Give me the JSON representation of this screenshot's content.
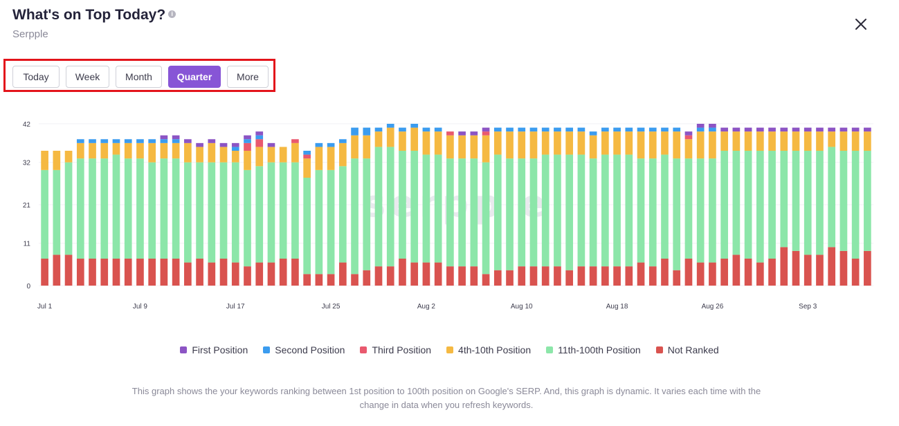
{
  "header": {
    "title": "What's on Top Today?",
    "subtitle": "Serpple",
    "info_icon": "info-circle-icon",
    "close_icon": "close-icon"
  },
  "tabs": [
    {
      "label": "Today",
      "active": false
    },
    {
      "label": "Week",
      "active": false
    },
    {
      "label": "Month",
      "active": false
    },
    {
      "label": "Quarter",
      "active": true
    },
    {
      "label": "More",
      "active": false
    }
  ],
  "colors": {
    "accent": "#8755d6",
    "highlight_border": "#e3141b"
  },
  "chart_data": {
    "type": "bar",
    "stacked": true,
    "watermark": "serpple",
    "y_ticks": [
      0,
      11,
      21,
      32,
      42
    ],
    "ylim": [
      0,
      42
    ],
    "x_tick_labels": [
      "Jul 1",
      "Jul 9",
      "Jul 17",
      "Jul 25",
      "Aug 2",
      "Aug 10",
      "Aug 18",
      "Aug 26",
      "Sep 3"
    ],
    "x_tick_indices": [
      0,
      8,
      16,
      24,
      32,
      40,
      48,
      56,
      64
    ],
    "grid": true,
    "legend_position": "bottom",
    "series": [
      {
        "name": "Not Ranked",
        "color": "#d9534f",
        "values": [
          7,
          8,
          8,
          7,
          7,
          7,
          7,
          7,
          7,
          7,
          7,
          7,
          6,
          7,
          6,
          7,
          6,
          5,
          6,
          6,
          7,
          7,
          3,
          3,
          3,
          6,
          3,
          4,
          5,
          5,
          7,
          6,
          6,
          6,
          5,
          5,
          5,
          3,
          4,
          4,
          5,
          5,
          5,
          5,
          4,
          5,
          5,
          5,
          5,
          5,
          6,
          5,
          7,
          4,
          7,
          6,
          6,
          7,
          8,
          7,
          6,
          7,
          10,
          9,
          8,
          8,
          10,
          9,
          7,
          9
        ]
      },
      {
        "name": "11th-100th Position",
        "color": "#8ce6a9",
        "values": [
          23,
          22,
          24,
          26,
          26,
          26,
          27,
          26,
          26,
          25,
          26,
          26,
          26,
          25,
          26,
          25,
          26,
          25,
          25,
          26,
          25,
          25,
          25,
          27,
          27,
          25,
          30,
          29,
          31,
          31,
          28,
          29,
          28,
          28,
          28,
          28,
          28,
          29,
          30,
          29,
          28,
          28,
          29,
          29,
          30,
          29,
          28,
          29,
          29,
          29,
          27,
          28,
          27,
          29,
          26,
          27,
          27,
          28,
          27,
          28,
          29,
          28,
          25,
          26,
          27,
          27,
          26,
          26,
          28,
          26
        ]
      },
      {
        "name": "4th-10th Position",
        "color": "#f5b942",
        "values": [
          5,
          5,
          3,
          4,
          4,
          4,
          3,
          4,
          4,
          5,
          4,
          4,
          5,
          4,
          5,
          4,
          3,
          5,
          5,
          4,
          4,
          5,
          5,
          6,
          6,
          6,
          6,
          6,
          4,
          5,
          5,
          6,
          6,
          6,
          6,
          6,
          6,
          7,
          6,
          7,
          7,
          7,
          6,
          6,
          6,
          6,
          6,
          6,
          6,
          6,
          7,
          7,
          6,
          7,
          5,
          7,
          7,
          5,
          5,
          5,
          5,
          5,
          5,
          5,
          5,
          5,
          4,
          5,
          5,
          5
        ]
      },
      {
        "name": "Third Position",
        "color": "#e9596e",
        "values": [
          0,
          0,
          0,
          0,
          0,
          0,
          0,
          0,
          0,
          0,
          0,
          0,
          0,
          0,
          0,
          0,
          0,
          2,
          2,
          0,
          0,
          1,
          1,
          0,
          0,
          0,
          0,
          0,
          0,
          0,
          0,
          0,
          0,
          0,
          1,
          0,
          0,
          1,
          0,
          0,
          0,
          0,
          0,
          0,
          0,
          0,
          0,
          0,
          0,
          0,
          0,
          0,
          0,
          0,
          1,
          0,
          0,
          0,
          0,
          0,
          0,
          0,
          0,
          0,
          0,
          0,
          0,
          0,
          0,
          0
        ]
      },
      {
        "name": "Second Position",
        "color": "#3b9cef",
        "values": [
          0,
          0,
          0,
          1,
          1,
          1,
          1,
          1,
          1,
          1,
          1,
          1,
          0,
          0,
          0,
          0,
          1,
          1,
          1,
          0,
          0,
          0,
          1,
          1,
          1,
          1,
          2,
          2,
          1,
          1,
          1,
          1,
          1,
          1,
          0,
          0,
          0,
          0,
          1,
          1,
          1,
          1,
          1,
          1,
          1,
          1,
          1,
          1,
          1,
          1,
          1,
          1,
          1,
          1,
          0,
          1,
          1,
          0,
          0,
          0,
          0,
          0,
          0,
          0,
          0,
          0,
          0,
          0,
          0,
          0
        ]
      },
      {
        "name": "First Position",
        "color": "#8c54c4",
        "values": [
          0,
          0,
          0,
          0,
          0,
          0,
          0,
          0,
          0,
          0,
          1,
          1,
          1,
          1,
          1,
          1,
          1,
          1,
          1,
          1,
          0,
          0,
          0,
          0,
          0,
          0,
          0,
          0,
          0,
          0,
          0,
          0,
          0,
          0,
          0,
          1,
          1,
          1,
          0,
          0,
          0,
          0,
          0,
          0,
          0,
          0,
          0,
          0,
          0,
          0,
          0,
          0,
          0,
          0,
          1,
          1,
          1,
          1,
          1,
          1,
          1,
          1,
          1,
          1,
          1,
          1,
          1,
          1,
          1,
          1
        ]
      }
    ]
  },
  "legend": [
    {
      "label": "First Position",
      "color": "#8c54c4"
    },
    {
      "label": "Second Position",
      "color": "#3b9cef"
    },
    {
      "label": "Third Position",
      "color": "#e9596e"
    },
    {
      "label": "4th-10th Position",
      "color": "#f5b942"
    },
    {
      "label": "11th-100th Position",
      "color": "#8ce6a9"
    },
    {
      "label": "Not Ranked",
      "color": "#d9534f"
    }
  ],
  "footnote": "This graph shows the your keywords ranking between 1st position to 100th position on Google's SERP. And, this graph is dynamic. It varies each time with the change in data when you refresh keywords."
}
